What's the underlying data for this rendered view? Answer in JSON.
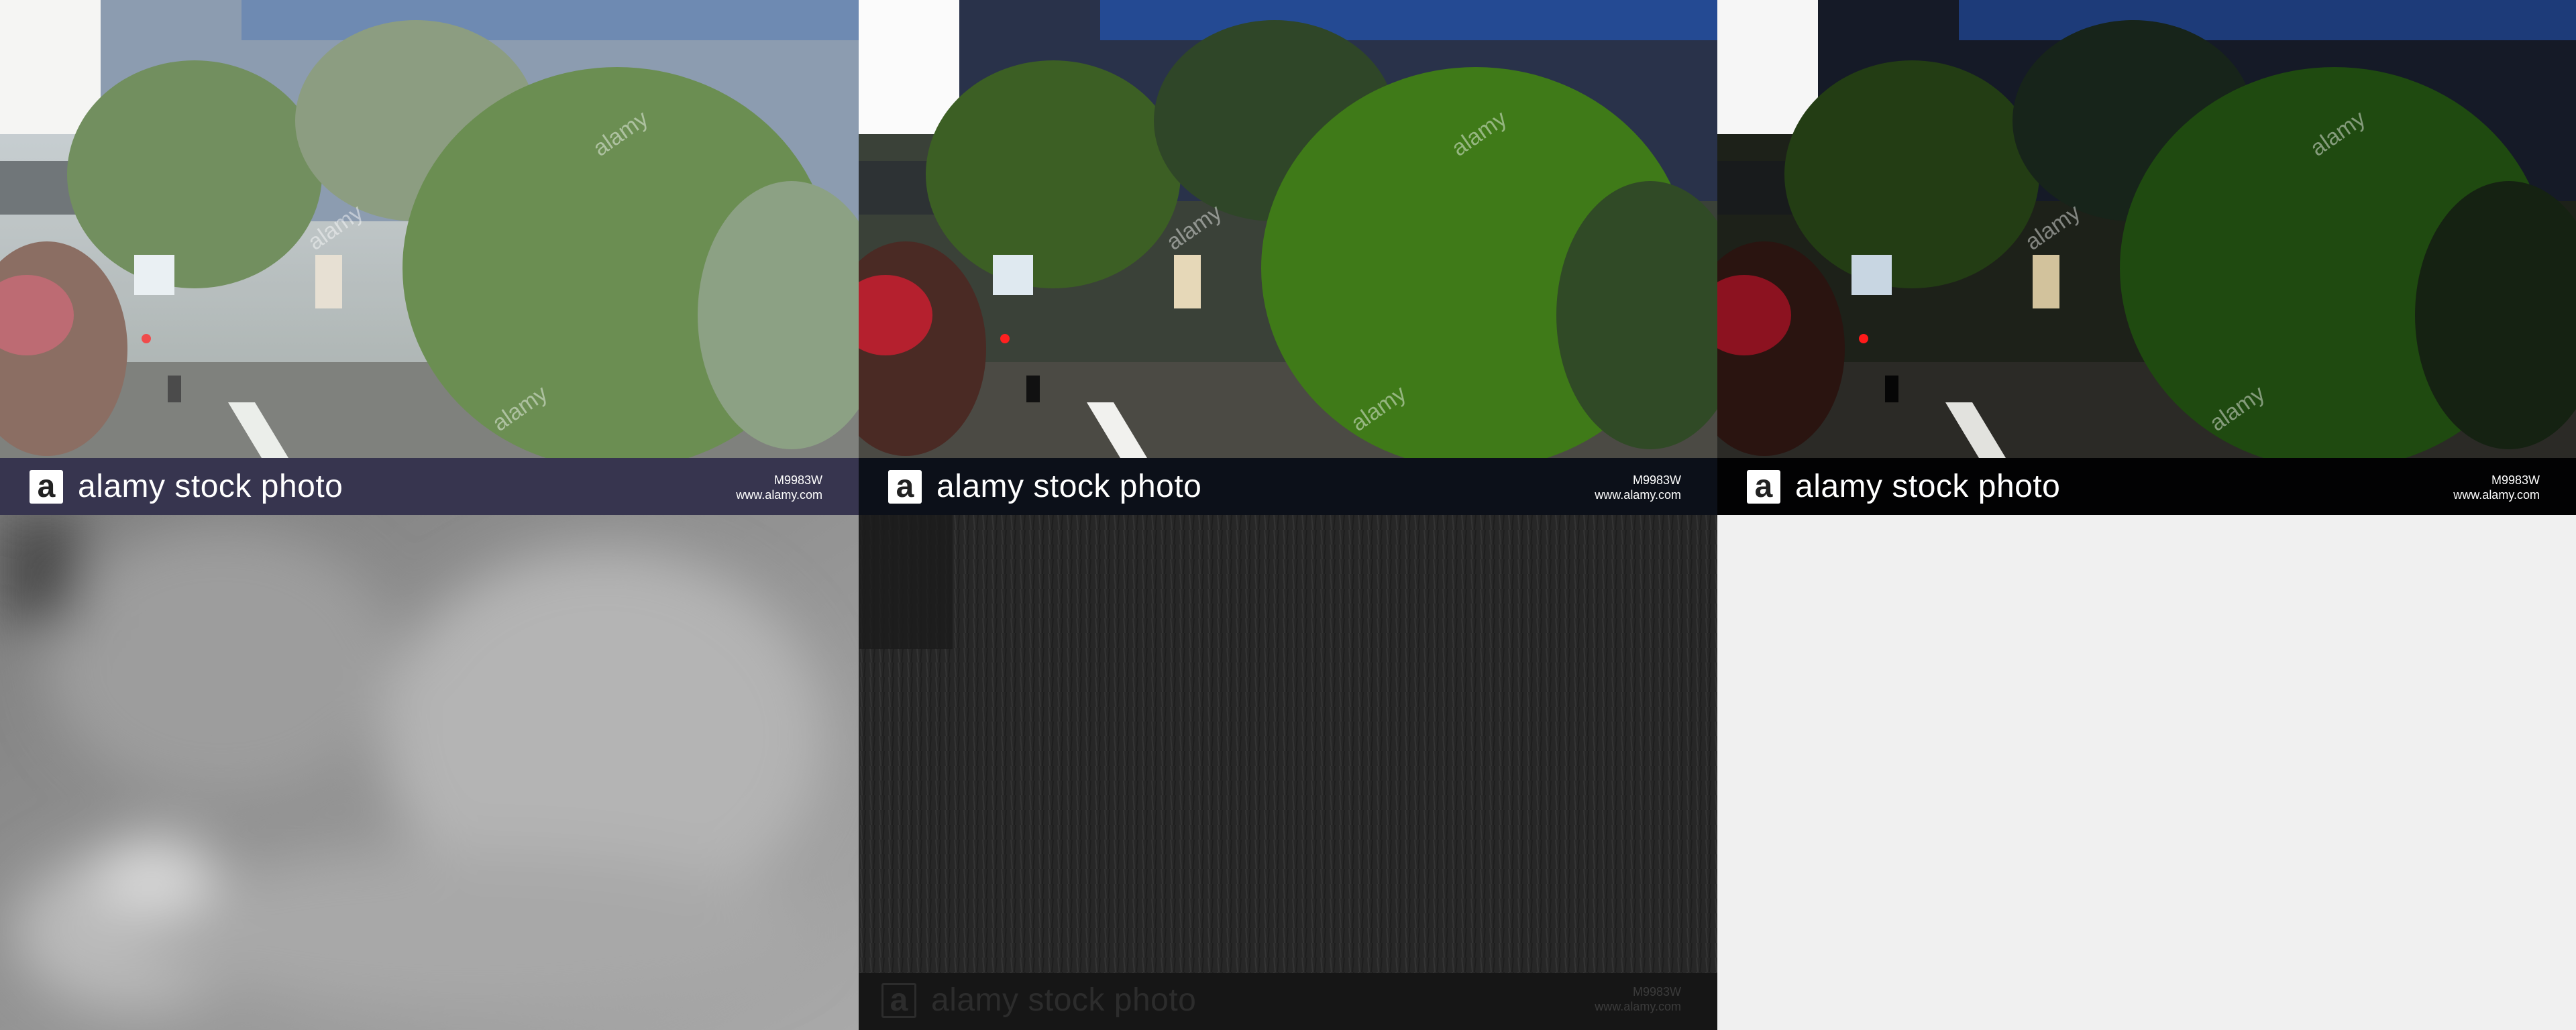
{
  "panels": [
    {
      "id": "original",
      "banner": {
        "logo_glyph": "a",
        "brand": "alamy stock photo",
        "code": "M9983W",
        "url": "www.alamy.com"
      },
      "watermark": "alamy"
    },
    {
      "id": "enhanced",
      "banner": {
        "logo_glyph": "a",
        "brand": "alamy stock photo",
        "code": "M9983W",
        "url": "www.alamy.com"
      },
      "watermark": "alamy"
    },
    {
      "id": "dark",
      "banner": {
        "logo_glyph": "a",
        "brand": "alamy stock photo",
        "code": "M9983W",
        "url": "www.alamy.com"
      },
      "watermark": "alamy"
    },
    {
      "id": "depth-map"
    },
    {
      "id": "edge-map",
      "banner": {
        "logo_glyph": "a",
        "brand": "alamy stock photo",
        "code": "M9983W",
        "url": "www.alamy.com"
      }
    },
    {
      "id": "empty"
    }
  ],
  "colors": {
    "banner_1": "#37354f",
    "banner_2": "#0c1019",
    "banner_3": "#020203",
    "empty_panel": "#f0f0f0",
    "foliage": "#3f7a2a",
    "building_glass": "#2f4f86"
  }
}
